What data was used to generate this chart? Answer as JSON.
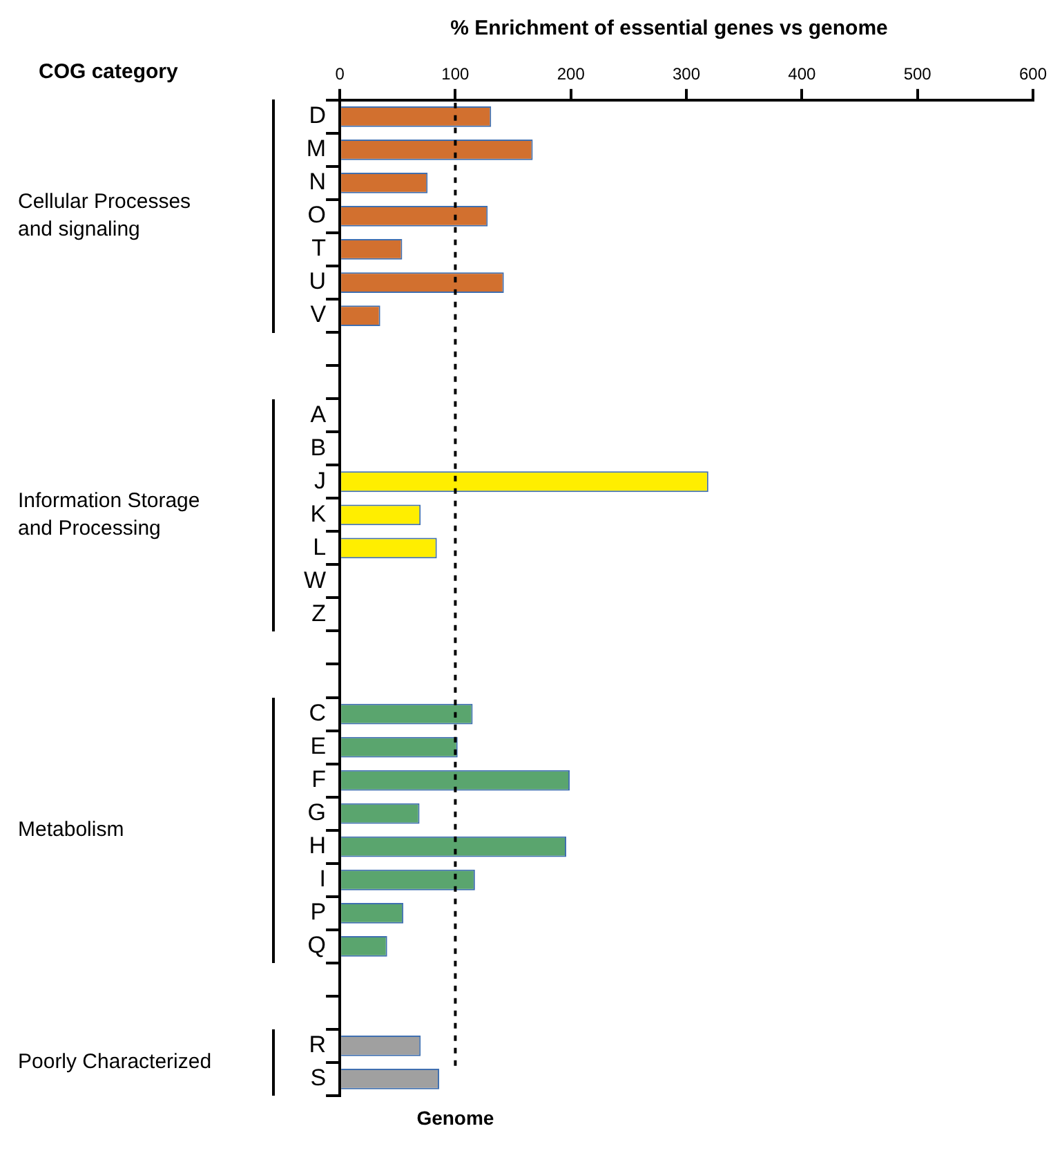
{
  "chart_data": {
    "type": "bar",
    "orientation": "horizontal",
    "title": "% Enrichment of essential genes vs genome",
    "categories": [
      "D",
      "M",
      "N",
      "O",
      "T",
      "U",
      "V",
      null,
      null,
      "A",
      "B",
      "J",
      "K",
      "L",
      "W",
      "Z",
      null,
      null,
      "C",
      "E",
      "F",
      "G",
      "H",
      "I",
      "P",
      "Q",
      null,
      null,
      "R",
      "S"
    ],
    "values": [
      131,
      167,
      76,
      128,
      54,
      142,
      35,
      null,
      null,
      null,
      null,
      319,
      70,
      84,
      null,
      null,
      null,
      null,
      115,
      102,
      199,
      69,
      196,
      117,
      55,
      41,
      null,
      null,
      70,
      86
    ],
    "colors": [
      "#d2702f",
      "#d2702f",
      "#d2702f",
      "#d2702f",
      "#d2702f",
      "#d2702f",
      "#d2702f",
      "#ffffff",
      "#ffffff",
      "#ffee00",
      "#ffee00",
      "#ffee00",
      "#ffee00",
      "#ffee00",
      "#ffee00",
      "#ffee00",
      "#ffffff",
      "#ffffff",
      "#5aa56e",
      "#5aa56e",
      "#5aa56e",
      "#5aa56e",
      "#5aa56e",
      "#5aa56e",
      "#5aa56e",
      "#5aa56e",
      "#ffffff",
      "#ffffff",
      "#a0a0a0",
      "#a0a0a0"
    ],
    "xlim": [
      0,
      600
    ],
    "xticks": [
      0,
      100,
      200,
      300,
      400,
      500,
      600
    ],
    "grid": false,
    "legend": false,
    "ref_lines": [
      {
        "axis": "x",
        "value": 100,
        "label": "Genome",
        "line_style": "dashed",
        "color": "#000000"
      }
    ],
    "annotations": [
      "COG category",
      "Cellular Processes\nand signaling",
      "Information Storage\nand Processing",
      "Metabolism",
      "Poorly Characterized"
    ]
  }
}
